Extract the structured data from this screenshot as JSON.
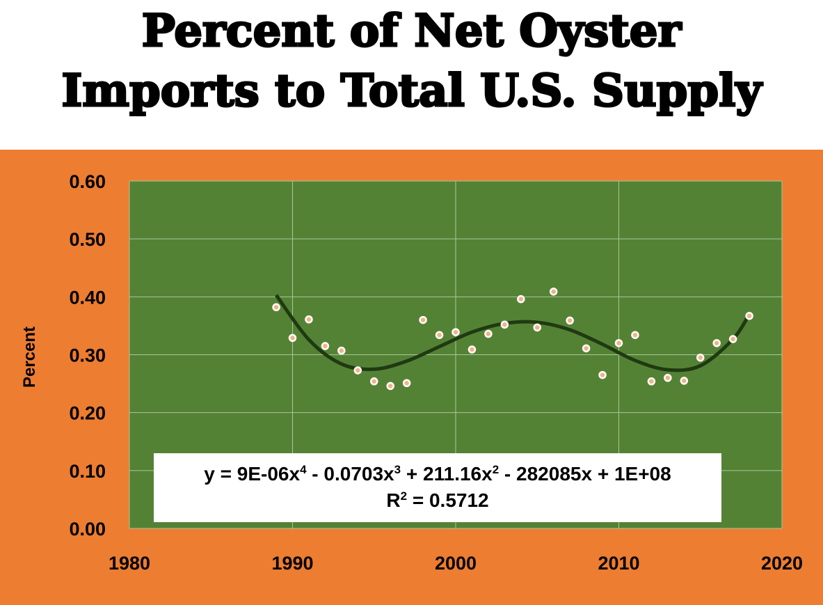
{
  "title_line1": "Percent of Net Oyster",
  "title_line2": "Imports to Total U.S. Supply",
  "colors": {
    "panel": "#ED7D31",
    "plot": "#548235",
    "grid": "#A9C79A",
    "trend": "#1F3A12",
    "marker_fill": "#F4B183",
    "marker_edge": "#ffffff"
  },
  "chart_data": {
    "type": "scatter",
    "title": "Percent of Net Oyster Imports to Total U.S. Supply",
    "xlabel": "",
    "ylabel": "Percent",
    "xlim": [
      1980,
      2020
    ],
    "ylim": [
      0,
      0.6
    ],
    "x_ticks": [
      "1980",
      "1990",
      "2000",
      "2010",
      "2020"
    ],
    "y_ticks": [
      "0.00",
      "0.10",
      "0.20",
      "0.30",
      "0.40",
      "0.50",
      "0.60"
    ],
    "grid": true,
    "legend": "none",
    "x": [
      1989,
      1990,
      1991,
      1992,
      1993,
      1994,
      1995,
      1996,
      1997,
      1998,
      1999,
      2000,
      2001,
      2002,
      2003,
      2004,
      2005,
      2006,
      2007,
      2008,
      2009,
      2010,
      2011,
      2012,
      2013,
      2014,
      2015,
      2016,
      2017,
      2018
    ],
    "y": [
      0.382,
      0.329,
      0.361,
      0.315,
      0.307,
      0.273,
      0.254,
      0.246,
      0.251,
      0.36,
      0.334,
      0.339,
      0.309,
      0.336,
      0.352,
      0.396,
      0.347,
      0.409,
      0.359,
      0.311,
      0.265,
      0.32,
      0.334,
      0.254,
      0.26,
      0.255,
      0.295,
      0.32,
      0.327,
      0.367
    ],
    "trendline": {
      "type": "polynomial",
      "order": 4,
      "equation_prefix": "y = 9E-06x",
      "exp4": "4",
      "equation_mid1": " - 0.0703x",
      "exp3": "3",
      "equation_mid2": " + 211.16x",
      "exp2": "2",
      "equation_suffix": " - 282085x + 1E+08",
      "r2_prefix": "R",
      "r2_exp": "2",
      "r2_suffix": " = 0.5712",
      "x": [
        1989,
        1991,
        1993,
        1995,
        1997,
        1999,
        2001,
        2003,
        2005,
        2007,
        2009,
        2011,
        2013,
        2015,
        2017,
        2018
      ],
      "y": [
        0.403,
        0.326,
        0.284,
        0.275,
        0.289,
        0.314,
        0.339,
        0.354,
        0.356,
        0.343,
        0.318,
        0.29,
        0.274,
        0.281,
        0.327,
        0.37
      ]
    }
  }
}
